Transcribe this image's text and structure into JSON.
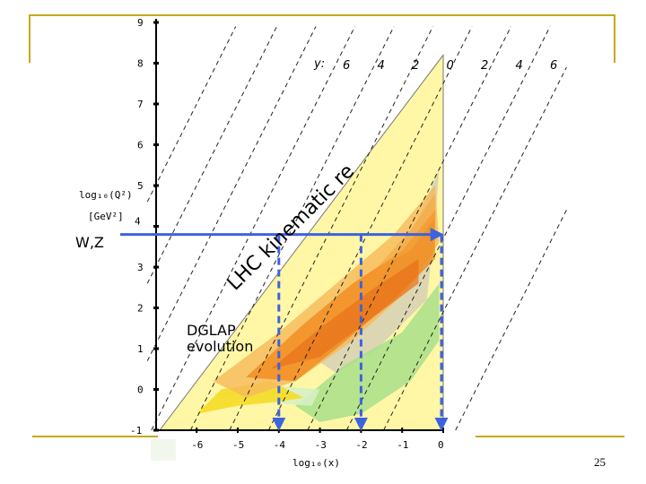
{
  "slide": {
    "page_number": "25"
  },
  "chart_data": {
    "type": "kinematic-plane",
    "xlabel": "log₁₀(x)",
    "ylabel_line1": "log₁₀(Q²)",
    "ylabel_line2": "[GeV²]",
    "xlim": [
      -7.5,
      0
    ],
    "ylim": [
      -1,
      9
    ],
    "x_ticks": [
      -6,
      -5,
      -4,
      -3,
      -2,
      -1,
      0
    ],
    "x_tick_labels": [
      "-6",
      "-5",
      "-4",
      "-3",
      "-2",
      "-1",
      "0"
    ],
    "y_ticks": [
      9,
      8,
      7,
      6,
      5,
      4,
      3,
      2,
      1,
      0,
      -1
    ],
    "y_tick_labels": [
      "9",
      "8",
      "7",
      "6",
      "5",
      "4",
      "3",
      "2",
      "1",
      "0",
      "-1"
    ],
    "rapidity_prefix": "y:",
    "rapidity_labels": [
      "6",
      "4",
      "2",
      "0",
      "2",
      "4",
      "6"
    ],
    "lhc_region_label": "LHC kinematic region",
    "lhc_region_vertices": [
      [
        -6.9,
        -1
      ],
      [
        0,
        -1
      ],
      [
        0,
        8.2
      ]
    ],
    "wz_label": "W,Z",
    "wz_log_q2": 3.8,
    "wz_arrow_x_end": -0.05,
    "drop_lines_x": [
      -4,
      -2,
      0
    ],
    "dglap_label_line1": "DGLAP",
    "dglap_label_line2": "evolution",
    "colors": {
      "lhc_region": "#fff7a6",
      "arrow": "#3d62e0",
      "orange": "#f08a1e",
      "yellow": "#f7dc2c",
      "green": "#a8df8a",
      "grey": "#d9d2b5",
      "deco": "#c8a81e"
    }
  }
}
